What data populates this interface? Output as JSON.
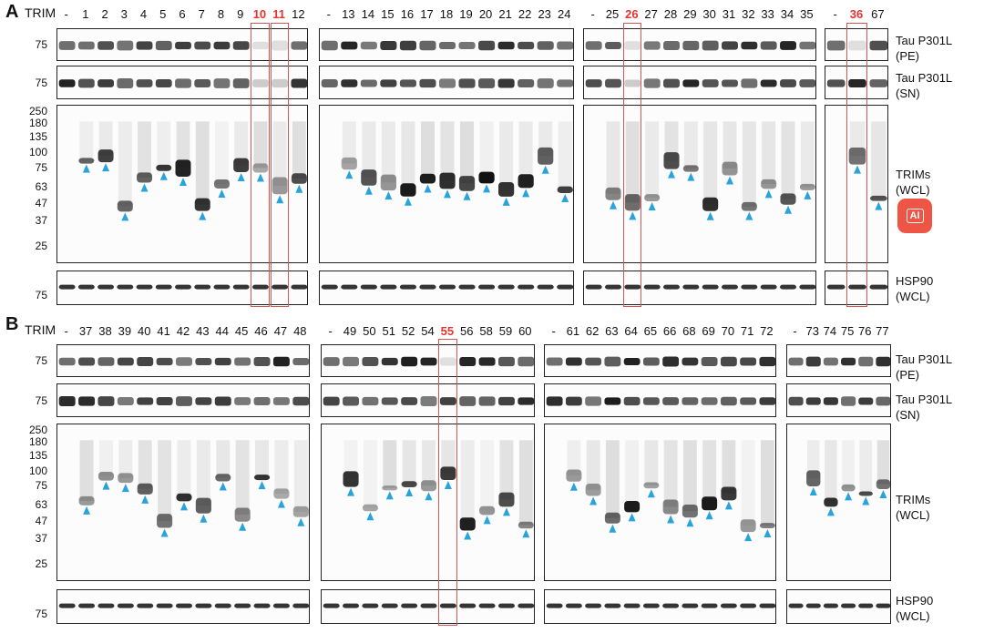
{
  "figure": {
    "panels": [
      {
        "letter": "A",
        "trim_label": "TRIM",
        "gel_groups": [
          [
            "-",
            "1",
            "2",
            "3",
            "4",
            "5",
            "6",
            "7",
            "8",
            "9",
            "10",
            "11",
            "12"
          ],
          [
            "-",
            "13",
            "14",
            "15",
            "16",
            "17",
            "18",
            "19",
            "20",
            "21",
            "22",
            "23",
            "24"
          ],
          [
            "-",
            "25",
            "26",
            "27",
            "28",
            "29",
            "30",
            "31",
            "32",
            "33",
            "34",
            "35"
          ],
          [
            "-",
            "36",
            "67"
          ]
        ],
        "highlighted_lanes": [
          "10",
          "11",
          "26",
          "36"
        ],
        "row_labels": [
          {
            "line1": "Tau P301L",
            "line2": "(PE)"
          },
          {
            "line1": "Tau P301L",
            "line2": "(SN)"
          },
          {
            "line1": "TRIMs",
            "line2": "(WCL)"
          },
          {
            "line1": "HSP90",
            "line2": "(WCL)"
          }
        ],
        "mw_markers_pe": [
          "75"
        ],
        "mw_markers_sn": [
          "75"
        ],
        "mw_markers_trims": [
          "250",
          "180",
          "135",
          "100",
          "75",
          "63",
          "47",
          "37",
          "25"
        ],
        "mw_markers_hsp90": [
          "75"
        ]
      },
      {
        "letter": "B",
        "trim_label": "TRIM",
        "gel_groups": [
          [
            "-",
            "37",
            "38",
            "39",
            "40",
            "41",
            "42",
            "43",
            "44",
            "45",
            "46",
            "47",
            "48"
          ],
          [
            "-",
            "49",
            "50",
            "51",
            "52",
            "54",
            "55",
            "56",
            "58",
            "59",
            "60"
          ],
          [
            "-",
            "61",
            "62",
            "63",
            "64",
            "65",
            "66",
            "68",
            "69",
            "70",
            "71",
            "72"
          ],
          [
            "-",
            "73",
            "74",
            "75",
            "76",
            "77"
          ]
        ],
        "highlighted_lanes": [
          "55"
        ],
        "row_labels": [
          {
            "line1": "Tau P301L",
            "line2": "(PE)"
          },
          {
            "line1": "Tau P301L",
            "line2": "(SN)"
          },
          {
            "line1": "TRIMs",
            "line2": "(WCL)"
          },
          {
            "line1": "HSP90",
            "line2": "(WCL)"
          }
        ],
        "mw_markers_pe": [
          "75"
        ],
        "mw_markers_sn": [
          "75"
        ],
        "mw_markers_trims": [
          "250",
          "180",
          "135",
          "100",
          "75",
          "63",
          "47",
          "37",
          "25"
        ],
        "mw_markers_hsp90": [
          "75"
        ]
      }
    ],
    "ai_badge_text": "AI",
    "colors": {
      "highlight": "#d55555",
      "highlight_text": "#e8322e",
      "arrow": "#29a3dc",
      "badge": "#ef5545"
    }
  }
}
